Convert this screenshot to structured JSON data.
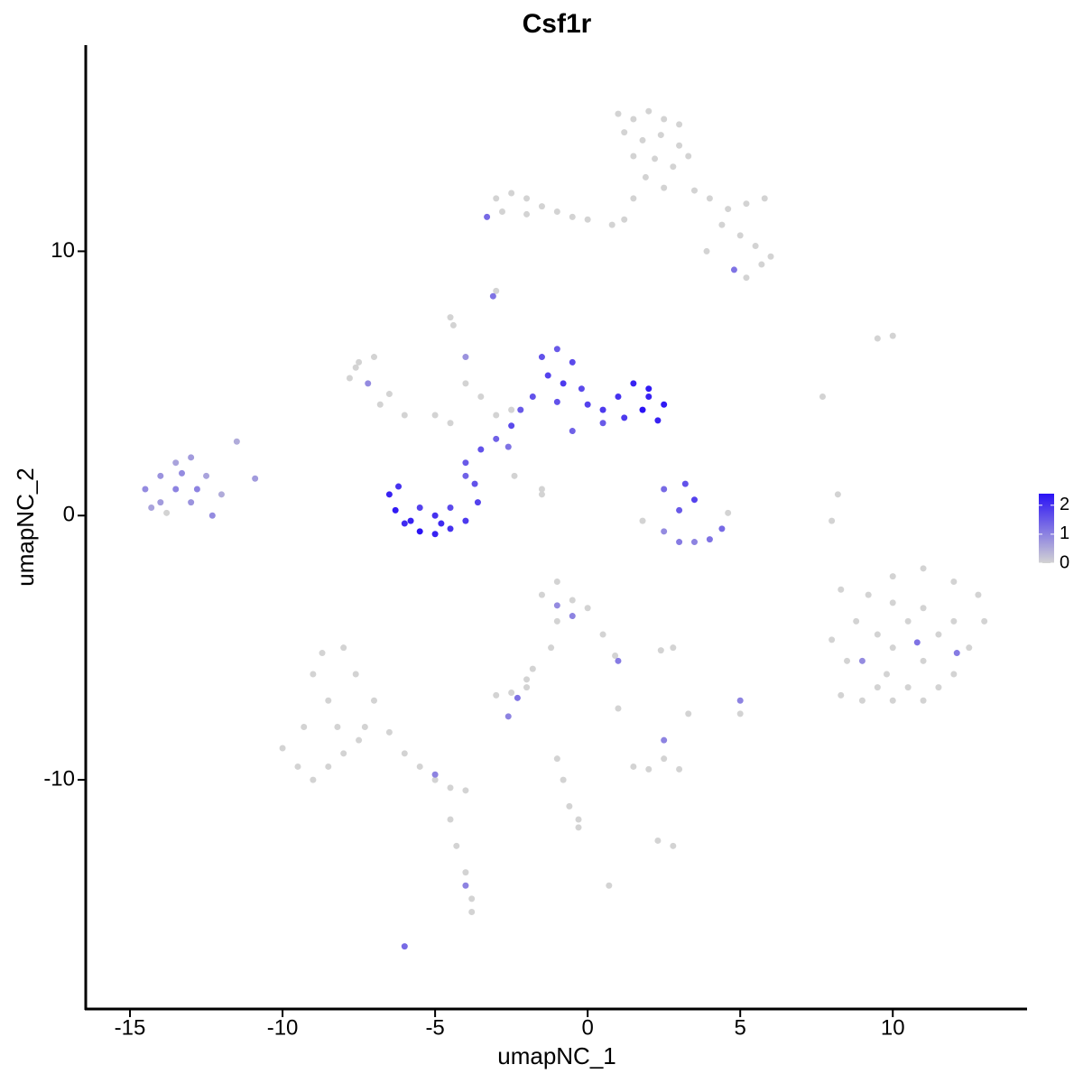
{
  "chart_data": {
    "type": "scatter",
    "title": "Csf1r",
    "x_label": "umapNC_1",
    "y_label": "umapNC_2",
    "xlim": [
      -16.45,
      14.4
    ],
    "ylim": [
      -18.67,
      17.8
    ],
    "xticks": [
      -15,
      -10,
      -5,
      0,
      5,
      10
    ],
    "yticks": [
      -10,
      0,
      10
    ],
    "color_low": "#d3d3d3",
    "color_high": "#2a12f5",
    "clim": [
      0,
      2.4
    ],
    "cticks": [
      0,
      1,
      2
    ],
    "x": [
      1.0,
      1.5,
      2.0,
      2.5,
      3.0,
      1.2,
      1.8,
      2.4,
      3.0,
      1.5,
      2.2,
      2.8,
      3.3,
      1.9,
      2.5,
      3.5,
      4.0,
      4.6,
      5.2,
      5.8,
      4.4,
      5.0,
      5.5,
      6.0,
      5.7,
      4.8,
      5.2,
      1.5,
      1.2,
      0.8,
      3.9,
      -3.0,
      -2.5,
      -2.0,
      -1.5,
      -1.0,
      -0.5,
      0.0,
      -2.8,
      -3.3,
      -2.0,
      -3.0,
      -3.1,
      -4.5,
      -4.4,
      -4.0,
      -4.0,
      -3.5,
      -2.5,
      -3.0,
      -5.0,
      -4.5,
      -7.5,
      -7.0,
      -7.8,
      -7.2,
      -6.5,
      -6.8,
      -7.6,
      -6.0,
      -14.5,
      -14.0,
      -13.5,
      -13.0,
      -13.5,
      -13.0,
      -14.0,
      -12.5,
      -12.0,
      -12.3,
      -13.8,
      -14.3,
      -12.8,
      -11.5,
      -10.9,
      -13.3,
      -6.5,
      -6.3,
      -6.0,
      -5.5,
      -5.0,
      -4.5,
      -4.0,
      -3.6,
      -3.7,
      -4.0,
      -5.0,
      -5.5,
      -6.2,
      -4.5,
      -5.8,
      -4.8,
      -4.0,
      -3.5,
      -3.0,
      -2.5,
      -2.6,
      -2.2,
      -1.8,
      -2.4,
      -1.5,
      -1.5,
      -1.5,
      -1.0,
      -0.5,
      -1.3,
      -0.8,
      -0.2,
      0.0,
      -1.0,
      0.5,
      1.0,
      1.5,
      2.0,
      2.5,
      2.3,
      1.8,
      1.2,
      2.0,
      0.5,
      -0.5,
      2.5,
      3.2,
      3.5,
      3.0,
      1.8,
      2.5,
      3.0,
      3.5,
      4.0,
      4.4,
      4.6,
      8.0,
      8.5,
      8.3,
      9.0,
      9.5,
      10.0,
      10.5,
      11.0,
      11.5,
      12.0,
      12.5,
      13.0,
      12.8,
      12.0,
      11.0,
      10.0,
      9.2,
      8.8,
      9.5,
      10.0,
      10.5,
      11.0,
      11.5,
      12.0,
      10.0,
      11.0,
      9.8,
      10.8,
      12.1,
      9.0,
      8.3,
      8.0,
      8.2,
      7.7,
      9.5,
      10.0,
      -10.0,
      -9.5,
      -9.0,
      -8.5,
      -8.0,
      -7.5,
      -8.5,
      -9.0,
      -8.7,
      -8.0,
      -7.6,
      -7.0,
      -7.3,
      -9.3,
      -8.2,
      -6.5,
      -6.0,
      -5.5,
      -5.0,
      -4.5,
      -4.0,
      -5.0,
      -4.5,
      -4.3,
      -4.0,
      -3.8,
      -3.8,
      -4.0,
      -6.0,
      -1.5,
      -1.0,
      -0.5,
      0.0,
      0.5,
      -1.0,
      -0.5,
      -1.2,
      -1.8,
      -2.0,
      -1.0,
      0.9,
      1.0,
      -3.0,
      -2.5,
      -2.3,
      -2.6,
      -1.0,
      -0.8,
      -0.6,
      -0.3,
      -0.3,
      1.5,
      2.0,
      3.0,
      2.5,
      2.5,
      2.8,
      2.3,
      0.7,
      2.8,
      2.4,
      3.3,
      5.0,
      5.0,
      -2.0,
      1.0
    ],
    "y": [
      15.2,
      15.0,
      15.3,
      15.0,
      14.8,
      14.5,
      14.2,
      14.4,
      14.0,
      13.6,
      13.5,
      13.2,
      13.6,
      12.8,
      12.4,
      12.3,
      12.0,
      11.6,
      11.8,
      12.0,
      11.0,
      10.6,
      10.2,
      9.8,
      9.5,
      9.3,
      9.0,
      12.0,
      11.2,
      11.0,
      10.0,
      12.0,
      12.2,
      12.0,
      11.7,
      11.5,
      11.3,
      11.2,
      11.5,
      11.3,
      11.4,
      8.5,
      8.3,
      7.5,
      7.2,
      6.0,
      5.0,
      4.5,
      4.0,
      3.8,
      3.8,
      3.5,
      5.8,
      6.0,
      5.2,
      5.0,
      4.6,
      4.2,
      5.6,
      3.8,
      1.0,
      1.5,
      2.0,
      2.2,
      1.0,
      0.5,
      0.5,
      1.5,
      0.8,
      0.0,
      0.1,
      0.3,
      1.0,
      2.8,
      1.4,
      1.6,
      0.8,
      0.2,
      -0.3,
      -0.6,
      -0.7,
      -0.5,
      -0.2,
      0.5,
      1.2,
      1.5,
      0.0,
      0.3,
      1.1,
      0.3,
      -0.2,
      -0.3,
      2.0,
      2.5,
      2.9,
      3.4,
      2.6,
      4.0,
      4.5,
      1.5,
      1.0,
      0.8,
      6.0,
      6.3,
      5.8,
      5.3,
      5.0,
      4.8,
      4.2,
      4.3,
      4.0,
      4.5,
      5.0,
      4.8,
      4.2,
      3.6,
      4.0,
      3.7,
      4.5,
      3.5,
      3.2,
      1.0,
      1.2,
      0.6,
      0.2,
      -0.2,
      -0.6,
      -1.0,
      -1.0,
      -0.9,
      -0.5,
      0.1,
      -4.7,
      -5.5,
      -6.8,
      -7.0,
      -6.5,
      -7.0,
      -6.5,
      -7.0,
      -6.5,
      -6.0,
      -5.0,
      -4.0,
      -3.0,
      -2.5,
      -2.0,
      -2.3,
      -3.0,
      -4.0,
      -4.5,
      -5.0,
      -4.0,
      -3.5,
      -4.5,
      -4.0,
      -3.3,
      -5.5,
      -6.0,
      -4.8,
      -5.2,
      -5.5,
      -2.8,
      -0.2,
      0.8,
      4.5,
      6.7,
      6.8,
      -8.8,
      -9.5,
      -10.0,
      -9.5,
      -9.0,
      -8.5,
      -7.0,
      -6.0,
      -5.2,
      -5.0,
      -6.0,
      -7.0,
      -8.0,
      -8.0,
      -8.0,
      -8.2,
      -9.0,
      -9.5,
      -10.0,
      -10.3,
      -10.4,
      -9.8,
      -11.5,
      -12.5,
      -13.5,
      -14.5,
      -15.0,
      -14.0,
      -16.3,
      -3.0,
      -2.5,
      -3.2,
      -3.5,
      -4.5,
      -4.0,
      -3.8,
      -5.0,
      -5.8,
      -6.5,
      -3.4,
      -5.3,
      -5.5,
      -6.8,
      -6.7,
      -6.9,
      -7.6,
      -9.2,
      -10.0,
      -11.0,
      -11.8,
      -11.5,
      -9.5,
      -9.6,
      -9.6,
      -9.2,
      -8.5,
      -12.5,
      -12.3,
      -14.0,
      -5.0,
      -5.1,
      -7.5,
      -7.0,
      -7.5,
      -6.2,
      -7.3
    ],
    "values": [
      0,
      0,
      0,
      0,
      0,
      0,
      0,
      0,
      0,
      0,
      0,
      0,
      0,
      0,
      0,
      0,
      0,
      0,
      0,
      0,
      0,
      0,
      0,
      0,
      0,
      1.2,
      0,
      0,
      0,
      0,
      0,
      0,
      0,
      0,
      0,
      0,
      0,
      0,
      0,
      1.3,
      0,
      0,
      1.2,
      0,
      0,
      0.8,
      0,
      0,
      0,
      0,
      0,
      0,
      0,
      0,
      0,
      0.9,
      0,
      0,
      0,
      0,
      0.9,
      0.8,
      0.6,
      0.7,
      1.0,
      0.8,
      0.7,
      0.6,
      0.5,
      0.9,
      0,
      0.6,
      1.0,
      0.5,
      0.7,
      0.9,
      2.2,
      2.3,
      2.1,
      2.4,
      2.2,
      2.0,
      1.9,
      1.8,
      1.6,
      1.4,
      2.0,
      1.8,
      2.0,
      1.7,
      2.2,
      2.1,
      1.5,
      1.6,
      1.4,
      1.7,
      1.2,
      1.5,
      1.6,
      0,
      0,
      0,
      1.6,
      1.5,
      1.7,
      1.8,
      1.9,
      1.7,
      1.8,
      1.6,
      1.9,
      2.0,
      2.2,
      2.3,
      2.3,
      2.2,
      2.4,
      1.9,
      2.2,
      1.5,
      1.4,
      1.3,
      1.6,
      1.8,
      1.5,
      0,
      0.9,
      1.1,
      1.0,
      1.2,
      1.3,
      0,
      0,
      0,
      0,
      0,
      0,
      0,
      0,
      0,
      0,
      0,
      0,
      0,
      0,
      0,
      0,
      0,
      0,
      0,
      0,
      0,
      0,
      0,
      0,
      0,
      0,
      0,
      0,
      1.2,
      1.1,
      0.9,
      0,
      0,
      0,
      0,
      0,
      0,
      0,
      0,
      0,
      0,
      0,
      0,
      0,
      0,
      0,
      0,
      0,
      0,
      0,
      0,
      0,
      0,
      0,
      0,
      0,
      0,
      0,
      1.0,
      0,
      0,
      0,
      0,
      0,
      1.0,
      1.3,
      0,
      0,
      0,
      0,
      0,
      0,
      1.0,
      0,
      0,
      0,
      0.9,
      0,
      1.1,
      0,
      0,
      1.2,
      1.0,
      0,
      0,
      0,
      0,
      0,
      0,
      0,
      0,
      0,
      1.0,
      0,
      0,
      0,
      0,
      0,
      0,
      1.0,
      0,
      0,
      0
    ]
  }
}
